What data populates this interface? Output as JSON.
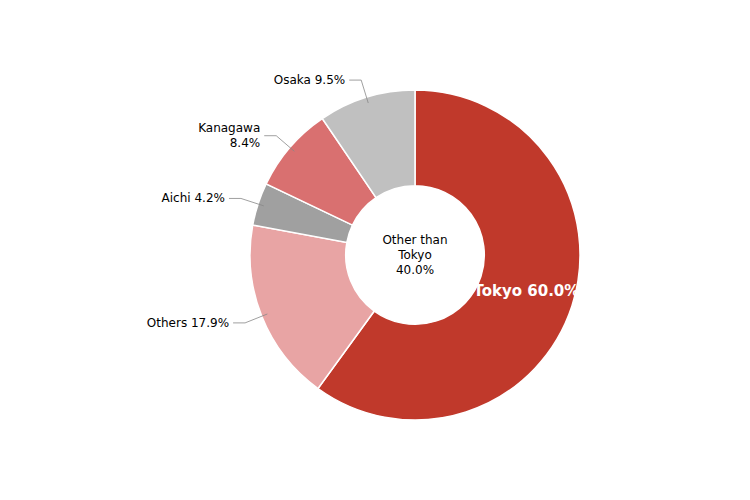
{
  "chart_data": {
    "type": "pie",
    "values": [
      60.0,
      17.9,
      4.2,
      8.4,
      9.5
    ],
    "value_labels": [
      "Tokyo 60.0%",
      "Others 17.9%",
      "Aichi 4.2%",
      "Kanagawa\n8.4%",
      "Osaka 9.5%"
    ],
    "colors": [
      "#c0392b",
      "#e8a4a4",
      "#a0a0a0",
      "#d97070",
      "#c0c0c0"
    ],
    "data_labels": true,
    "annotations": [
      "Other than\nTokyo\n40.0%"
    ]
  }
}
